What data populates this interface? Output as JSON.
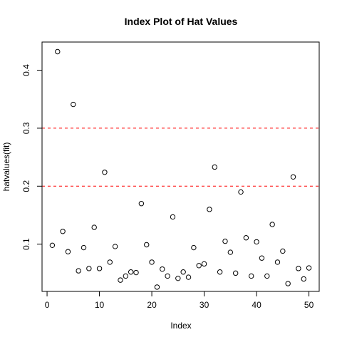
{
  "chart_data": {
    "type": "scatter",
    "title": "Index Plot of Hat Values",
    "xlabel": "Index",
    "ylabel": "hatvalues(fit)",
    "xlim": [
      -0.96,
      51.96
    ],
    "ylim": [
      0.0185,
      0.4486
    ],
    "x_ticks": [
      0,
      10,
      20,
      30,
      40,
      50
    ],
    "y_ticks": [
      0.1,
      0.2,
      0.3,
      0.4
    ],
    "x_tick_labels": [
      "0",
      "10",
      "20",
      "30",
      "40",
      "50"
    ],
    "y_tick_labels": [
      "0.1",
      "0.2",
      "0.3",
      "0.4"
    ],
    "grid": false,
    "point_marker": "open-circle",
    "reference_lines": [
      {
        "y": 0.2,
        "color": "#ff0000",
        "style": "dashed"
      },
      {
        "y": 0.3,
        "color": "#ff0000",
        "style": "dashed"
      }
    ],
    "x": [
      1,
      2,
      3,
      4,
      5,
      6,
      7,
      8,
      9,
      10,
      11,
      12,
      13,
      14,
      15,
      16,
      17,
      18,
      19,
      20,
      21,
      22,
      23,
      24,
      25,
      26,
      27,
      28,
      29,
      30,
      31,
      32,
      33,
      34,
      35,
      36,
      37,
      38,
      39,
      40,
      41,
      42,
      43,
      44,
      45,
      46,
      47,
      48,
      49,
      50
    ],
    "y": [
      0.098,
      0.432,
      0.122,
      0.087,
      0.341,
      0.054,
      0.094,
      0.058,
      0.129,
      0.058,
      0.224,
      0.069,
      0.096,
      0.038,
      0.045,
      0.052,
      0.051,
      0.17,
      0.099,
      0.069,
      0.026,
      0.057,
      0.045,
      0.147,
      0.041,
      0.052,
      0.043,
      0.094,
      0.063,
      0.066,
      0.16,
      0.233,
      0.052,
      0.105,
      0.086,
      0.05,
      0.19,
      0.111,
      0.045,
      0.104,
      0.076,
      0.045,
      0.134,
      0.069,
      0.088,
      0.032,
      0.216,
      0.058,
      0.04,
      0.059
    ]
  }
}
